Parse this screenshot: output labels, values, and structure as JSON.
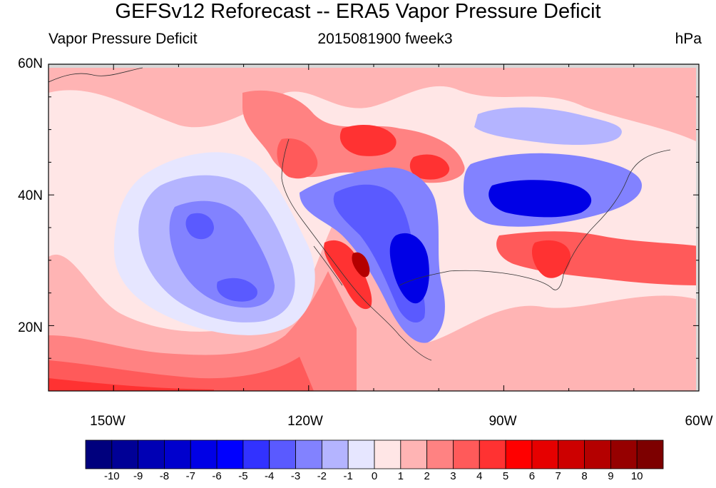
{
  "title": "GEFSv12 Reforecast -- ERA5 Vapor Pressure Deficit",
  "subtitle_left": "Vapor Pressure Deficit",
  "subtitle_center": "2015081900 fweek3",
  "subtitle_right": "hPa",
  "lat_labels": [
    "60N",
    "40N",
    "20N"
  ],
  "lon_labels": [
    "150W",
    "120W",
    "90W",
    "60W"
  ],
  "map_extent": {
    "lon_min": -160,
    "lon_max": -60,
    "lat_min": 10,
    "lat_max": 60
  },
  "colorbar": {
    "labels": [
      "-10",
      "-9",
      "-8",
      "-7",
      "-6",
      "-5",
      "-4",
      "-3",
      "-2",
      "-1",
      "0",
      "1",
      "2",
      "3",
      "4",
      "5",
      "6",
      "7",
      "8",
      "9",
      "10"
    ],
    "colors": [
      "#00007d",
      "#000096",
      "#0000b4",
      "#0000cd",
      "#0000e6",
      "#0000ff",
      "#3232ff",
      "#5a5aff",
      "#8282ff",
      "#b4b4ff",
      "#e6e6ff",
      "#ffe6e6",
      "#ffb4b4",
      "#ff8282",
      "#ff5a5a",
      "#ff3232",
      "#ff0000",
      "#e60000",
      "#cd0000",
      "#b40000",
      "#960000",
      "#7d0000"
    ]
  },
  "fields": {
    "light_red": "#ffb4b4",
    "very_light_red": "#ffe6e6",
    "very_light_blue": "#e6e6ff",
    "light_blue": "#b4b4ff",
    "medium_blue": "#8282ff",
    "blue": "#5a5aff",
    "deep_blue": "#0000e6",
    "medium_red": "#ff8282",
    "red": "#ff5a5a",
    "bright_red": "#ff3232",
    "deep_red": "#e60000",
    "dark_red": "#b40000",
    "gray_strip": "#d8d8d8"
  }
}
